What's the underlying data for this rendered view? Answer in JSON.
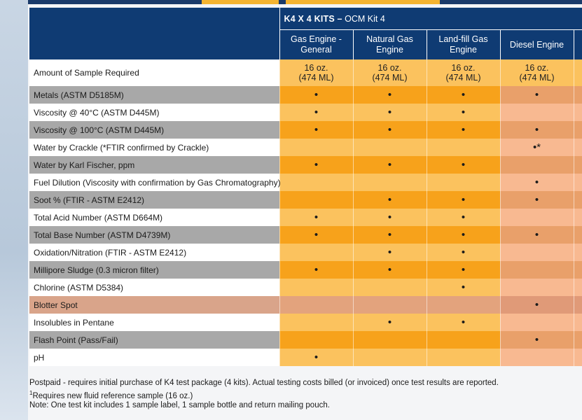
{
  "kit_title_bold": "K4 X 4 KITS –",
  "kit_title_rest": "OCM Kit 4",
  "columns": [
    "Gas Engine -\nGeneral",
    "Natural Gas\nEngine",
    "Land-fill Gas\nEngine",
    "Diesel Engine"
  ],
  "amount": {
    "label": "Amount of Sample Required",
    "values": [
      "16 oz.\n(474 ML)",
      "16 oz.\n(474 ML)",
      "16 oz.\n(474 ML)",
      "16 oz.\n(474 ML)"
    ]
  },
  "rows": [
    {
      "label": "Metals (ASTM D5185M)",
      "values": [
        "•",
        "•",
        "•",
        "•"
      ]
    },
    {
      "label": "Viscosity @ 40°C (ASTM D445M)",
      "values": [
        "•",
        "•",
        "•",
        ""
      ]
    },
    {
      "label": "Viscosity @ 100°C (ASTM D445M)",
      "values": [
        "•",
        "•",
        "•",
        "•"
      ]
    },
    {
      "label": "Water by Crackle (*FTIR confirmed by Crackle)",
      "values": [
        "",
        "",
        "",
        "•*"
      ]
    },
    {
      "label": "Water by Karl Fischer, ppm",
      "values": [
        "•",
        "•",
        "•",
        ""
      ]
    },
    {
      "label": "Fuel Dilution (Viscosity with confirmation by Gas Chromatography)",
      "values": [
        "",
        "",
        "",
        "•"
      ]
    },
    {
      "label": "Soot % (FTIR - ASTM E2412)",
      "values": [
        "",
        "•",
        "•",
        "•"
      ]
    },
    {
      "label": "Total Acid Number (ASTM D664M)",
      "values": [
        "•",
        "•",
        "•",
        ""
      ]
    },
    {
      "label": "Total Base Number (ASTM D4739M)",
      "values": [
        "•",
        "•",
        "•",
        "•"
      ]
    },
    {
      "label": "Oxidation/Nitration (FTIR - ASTM E2412)",
      "values": [
        "",
        "•",
        "•",
        ""
      ]
    },
    {
      "label": "Millipore Sludge (0.3 micron filter)",
      "values": [
        "•",
        "•",
        "•",
        ""
      ]
    },
    {
      "label": "Chlorine (ASTM D5384)",
      "values": [
        "",
        "",
        "•",
        ""
      ]
    },
    {
      "label": "Blotter Spot",
      "values": [
        "",
        "",
        "",
        "•"
      ]
    },
    {
      "label": "Insolubles in Pentane",
      "values": [
        "",
        "•",
        "•",
        ""
      ]
    },
    {
      "label": "Flash Point (Pass/Fail)",
      "values": [
        "",
        "",
        "",
        "•"
      ]
    },
    {
      "label": "pH",
      "values": [
        "•",
        "",
        "",
        ""
      ]
    }
  ],
  "footnotes": {
    "line1": "Postpaid - requires initial purchase of K4 test package (4 kits). Actual testing costs billed (or invoiced) once test results are reported.",
    "line2_mark": "1",
    "line2": "Requires new fluid reference sample (16 oz.)",
    "line3": "Note: One test kit includes 1 sample label, 1 sample bottle and return mailing pouch."
  },
  "colors": {
    "navy": "#0f3b73",
    "orange": "#f7a21b",
    "light_orange": "#fbc25e",
    "peach": "#f8b991",
    "gray": "#a8a8a8",
    "salmon": "#d9a48a"
  }
}
